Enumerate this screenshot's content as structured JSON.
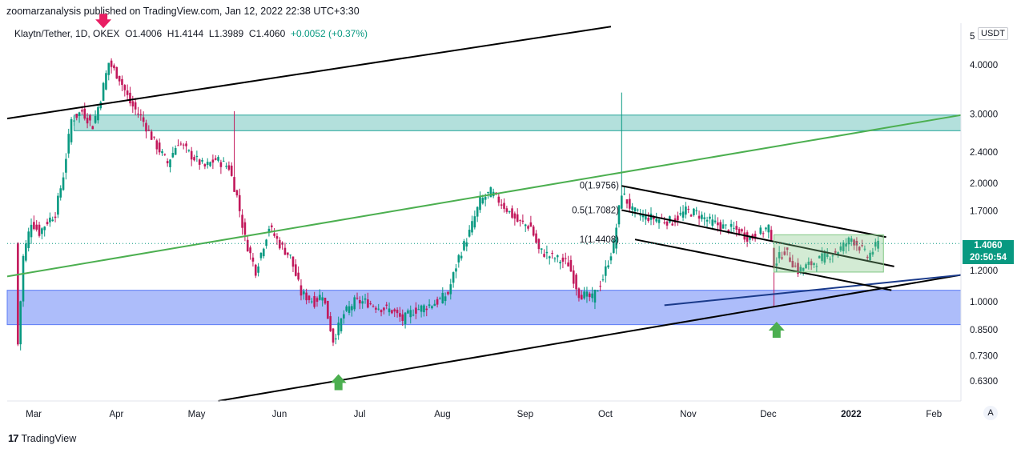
{
  "header": {
    "publisher_line": "zoomarzanalysis published on TradingView.com, Jan 12, 2022 22:38 UTC+3:30"
  },
  "symbol": {
    "name": "Klaytn/Tether, 1D, OKEX",
    "open": "O1.4006",
    "high": "H1.4144",
    "low": "L1.3989",
    "close": "C1.4060",
    "change": "+0.0052 (+0.37%)"
  },
  "price_axis": {
    "currency": "USDT",
    "top_label": "5",
    "last_price": "1.4060",
    "countdown": "20:50:54"
  },
  "controls": {
    "auto_scale": "A"
  },
  "footer": {
    "brand": "TradingView",
    "logo": "17"
  },
  "colors": {
    "up": "#089981",
    "down": "#c2185b",
    "teal_zone": "#26a69a",
    "blue_zone": "#5b7cf5",
    "green_line": "#4caf50",
    "consolidation_box": "#81c784",
    "arrow_down": "#e91e63",
    "arrow_up": "#4caf50"
  },
  "icons": [
    "down-arrow-marker",
    "up-arrow-marker",
    "tradingview-logo"
  ],
  "chart_data": {
    "type": "candlestick",
    "scale": "log",
    "x_ticks": [
      "Mar",
      "Apr",
      "May",
      "Jun",
      "Jul",
      "Aug",
      "Sep",
      "Oct",
      "Nov",
      "Dec",
      "2022",
      "Feb"
    ],
    "y_ticks": [
      4.0,
      3.0,
      2.4,
      2.0,
      1.7,
      1.2,
      1.0,
      0.85,
      0.73,
      0.63
    ],
    "y_tick_labels": [
      "4.0000",
      "3.0000",
      "2.4000",
      "2.0000",
      "1.7000",
      "1.2000",
      "1.0000",
      "0.8500",
      "0.7300",
      "0.6300"
    ],
    "ylim": [
      0.56,
      5.1
    ],
    "fib_levels": [
      {
        "label": "0(1.9756)",
        "value": 1.9756
      },
      {
        "label": "0.5(1.7082)",
        "value": 1.7082
      },
      {
        "label": "1(1.4408)",
        "value": 1.4408
      }
    ],
    "zones": [
      {
        "name": "resistance",
        "low": 2.72,
        "high": 2.98
      },
      {
        "name": "support",
        "low": 0.875,
        "high": 1.07
      }
    ],
    "path": [
      [
        "2021-02-24",
        0.78
      ],
      [
        "2021-02-26",
        1.3
      ],
      [
        "2021-03-01",
        1.6
      ],
      [
        "2021-03-04",
        1.5
      ],
      [
        "2021-03-07",
        1.6
      ],
      [
        "2021-03-10",
        1.68
      ],
      [
        "2021-03-13",
        2.1
      ],
      [
        "2021-03-16",
        2.9
      ],
      [
        "2021-03-20",
        3.05
      ],
      [
        "2021-03-24",
        2.8
      ],
      [
        "2021-03-27",
        3.3
      ],
      [
        "2021-03-30",
        4.05
      ],
      [
        "2021-04-03",
        3.7
      ],
      [
        "2021-04-07",
        3.2
      ],
      [
        "2021-04-11",
        2.95
      ],
      [
        "2021-04-16",
        2.55
      ],
      [
        "2021-04-21",
        2.25
      ],
      [
        "2021-04-25",
        2.55
      ],
      [
        "2021-04-30",
        2.35
      ],
      [
        "2021-05-05",
        2.2
      ],
      [
        "2021-05-09",
        2.3
      ],
      [
        "2021-05-14",
        2.2
      ],
      [
        "2021-05-17",
        1.85
      ],
      [
        "2021-05-20",
        1.45
      ],
      [
        "2021-05-24",
        1.2
      ],
      [
        "2021-05-29",
        1.55
      ],
      [
        "2021-06-02",
        1.4
      ],
      [
        "2021-06-06",
        1.3
      ],
      [
        "2021-06-10",
        1.05
      ],
      [
        "2021-06-15",
        1.0
      ],
      [
        "2021-06-18",
        1.05
      ],
      [
        "2021-06-22",
        0.8
      ],
      [
        "2021-06-26",
        0.93
      ],
      [
        "2021-06-30",
        1.0
      ],
      [
        "2021-07-04",
        1.0
      ],
      [
        "2021-07-09",
        0.97
      ],
      [
        "2021-07-14",
        0.95
      ],
      [
        "2021-07-18",
        0.9
      ],
      [
        "2021-07-22",
        0.95
      ],
      [
        "2021-07-26",
        0.97
      ],
      [
        "2021-07-31",
        1.0
      ],
      [
        "2021-08-04",
        1.05
      ],
      [
        "2021-08-08",
        1.3
      ],
      [
        "2021-08-12",
        1.5
      ],
      [
        "2021-08-16",
        1.8
      ],
      [
        "2021-08-20",
        1.9
      ],
      [
        "2021-08-25",
        1.75
      ],
      [
        "2021-08-30",
        1.6
      ],
      [
        "2021-09-04",
        1.55
      ],
      [
        "2021-09-07",
        1.35
      ],
      [
        "2021-09-12",
        1.3
      ],
      [
        "2021-09-18",
        1.25
      ],
      [
        "2021-09-22",
        1.05
      ],
      [
        "2021-09-27",
        1.02
      ],
      [
        "2021-10-01",
        1.15
      ],
      [
        "2021-10-05",
        1.4
      ],
      [
        "2021-10-08",
        1.9
      ],
      [
        "2021-10-12",
        1.7
      ],
      [
        "2021-10-16",
        1.65
      ],
      [
        "2021-10-22",
        1.62
      ],
      [
        "2021-10-27",
        1.6
      ],
      [
        "2021-11-01",
        1.7
      ],
      [
        "2021-11-05",
        1.68
      ],
      [
        "2021-11-10",
        1.6
      ],
      [
        "2021-11-15",
        1.55
      ],
      [
        "2021-11-20",
        1.52
      ],
      [
        "2021-11-25",
        1.45
      ],
      [
        "2021-11-29",
        1.5
      ],
      [
        "2021-12-02",
        1.55
      ],
      [
        "2021-12-04",
        1.25
      ],
      [
        "2021-12-08",
        1.35
      ],
      [
        "2021-12-13",
        1.2
      ],
      [
        "2021-12-18",
        1.25
      ],
      [
        "2021-12-23",
        1.3
      ],
      [
        "2021-12-28",
        1.35
      ],
      [
        "2022-01-02",
        1.45
      ],
      [
        "2022-01-05",
        1.38
      ],
      [
        "2022-01-08",
        1.3
      ],
      [
        "2022-01-12",
        1.406
      ]
    ],
    "spikes": [
      {
        "date": "2021-05-16",
        "high": 3.05
      },
      {
        "date": "2021-10-08",
        "high": 3.4
      },
      {
        "date": "2021-12-04",
        "low": 0.97
      }
    ]
  }
}
